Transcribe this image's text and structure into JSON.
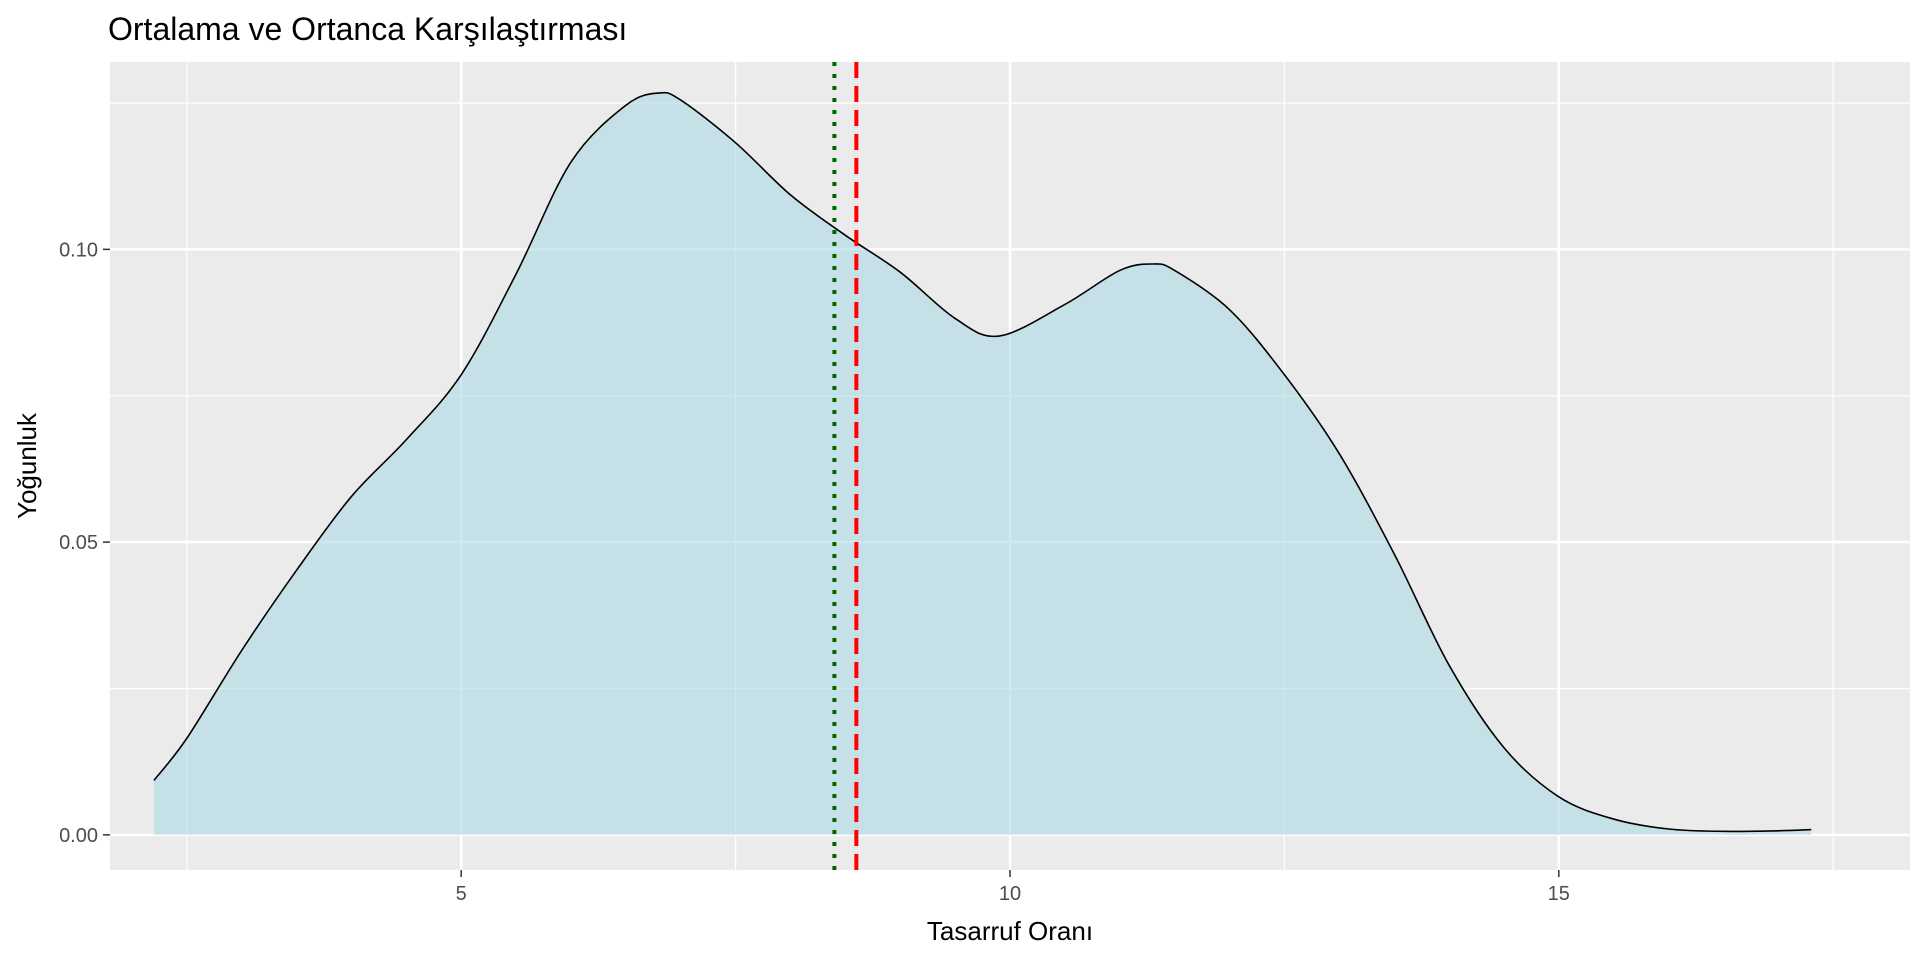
{
  "chart_data": {
    "type": "area",
    "title": "Ortalama ve Ortanca Karşılaştırması",
    "xlabel": "Tasarruf Oranı",
    "ylabel": "Yoğunluk",
    "xlim": [
      1.8,
      18.2
    ],
    "ylim": [
      -0.006,
      0.132
    ],
    "x_ticks": [
      {
        "value": 5,
        "label": "5"
      },
      {
        "value": 10,
        "label": "10"
      },
      {
        "value": 15,
        "label": "15"
      }
    ],
    "x_minor_ticks": [
      2.5,
      7.5,
      12.5,
      17.5
    ],
    "y_ticks": [
      {
        "value": 0.0,
        "label": "0.00"
      },
      {
        "value": 0.05,
        "label": "0.05"
      },
      {
        "value": 0.1,
        "label": "0.10"
      }
    ],
    "y_minor_ticks": [
      0.025,
      0.075,
      0.125
    ],
    "grid": true,
    "density": {
      "x": [
        2.2,
        2.5,
        3.0,
        3.5,
        4.0,
        4.5,
        5.0,
        5.5,
        6.0,
        6.5,
        6.8,
        7.0,
        7.5,
        8.0,
        8.5,
        9.0,
        9.5,
        9.9,
        10.5,
        11.0,
        11.3,
        11.5,
        12.0,
        12.5,
        13.0,
        13.5,
        14.0,
        14.5,
        15.0,
        15.5,
        16.0,
        16.5,
        17.0,
        17.3
      ],
      "y": [
        0.0093,
        0.0165,
        0.0315,
        0.0452,
        0.0578,
        0.0675,
        0.0786,
        0.0958,
        0.1149,
        0.1246,
        0.1267,
        0.1255,
        0.1182,
        0.1093,
        0.1024,
        0.0961,
        0.0882,
        0.0852,
        0.0906,
        0.0964,
        0.0975,
        0.0964,
        0.0897,
        0.0786,
        0.0651,
        0.048,
        0.029,
        0.0149,
        0.0065,
        0.0027,
        0.001,
        0.0006,
        0.0007,
        0.0009
      ]
    },
    "fill_color": "#add8e6",
    "fill_opacity": 0.6,
    "line_color": "#000000",
    "vlines": [
      {
        "x": 8.4,
        "color": "#006400",
        "linetype": "dotted"
      },
      {
        "x": 8.6,
        "color": "#ff0000",
        "linetype": "dashed"
      }
    ],
    "panel_background": "#ebebeb",
    "grid_color": "#ffffff"
  }
}
